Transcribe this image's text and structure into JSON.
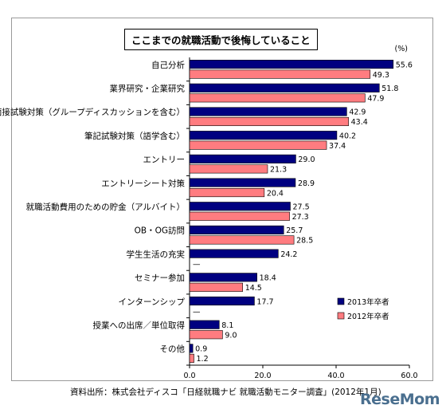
{
  "chart_data": {
    "type": "bar",
    "orientation": "horizontal",
    "title": "ここまでの就職活動で後悔していること",
    "unit": "(%)",
    "categories": [
      "自己分析",
      "業界研究・企業研究",
      "面接試験対策（グループディスカッションを含む）",
      "筆記試験対策（語学含む）",
      "エントリー",
      "エントリーシート対策",
      "就職活動費用のための貯金（アルバイト）",
      "OB・OG訪問",
      "学生生活の充実",
      "セミナー参加",
      "インターンシップ",
      "授業への出席／単位取得",
      "その他"
    ],
    "series": [
      {
        "name": "2013年卒者",
        "color": "#000080",
        "values": [
          55.6,
          51.8,
          42.9,
          40.2,
          29.0,
          28.9,
          27.5,
          25.7,
          24.2,
          18.4,
          17.7,
          8.1,
          0.9
        ],
        "labels": [
          "55.6",
          "51.8",
          "42.9",
          "40.2",
          "29.0",
          "28.9",
          "27.5",
          "25.7",
          "24.2",
          "18.4",
          "17.7",
          "8.1",
          "0.9"
        ]
      },
      {
        "name": "2012年卒者",
        "color": "#ff7c80",
        "values": [
          49.3,
          47.9,
          43.4,
          37.4,
          21.3,
          20.4,
          27.3,
          28.5,
          null,
          14.5,
          null,
          9.0,
          1.2
        ],
        "labels": [
          "49.3",
          "47.9",
          "43.4",
          "37.4",
          "21.3",
          "20.4",
          "27.3",
          "28.5",
          "—",
          "14.5",
          "—",
          "9.0",
          "1.2"
        ]
      }
    ],
    "xlim": [
      0,
      60
    ],
    "xticks": [
      "0.0",
      "20.0",
      "40.0",
      "60.0"
    ],
    "legend_position": "bottom-right",
    "grid": false
  },
  "source_note": "資料出所：株式会社ディスコ「日経就職ナビ 就職活動モニター調査」(2012年1月)",
  "watermark": "ReseMom"
}
